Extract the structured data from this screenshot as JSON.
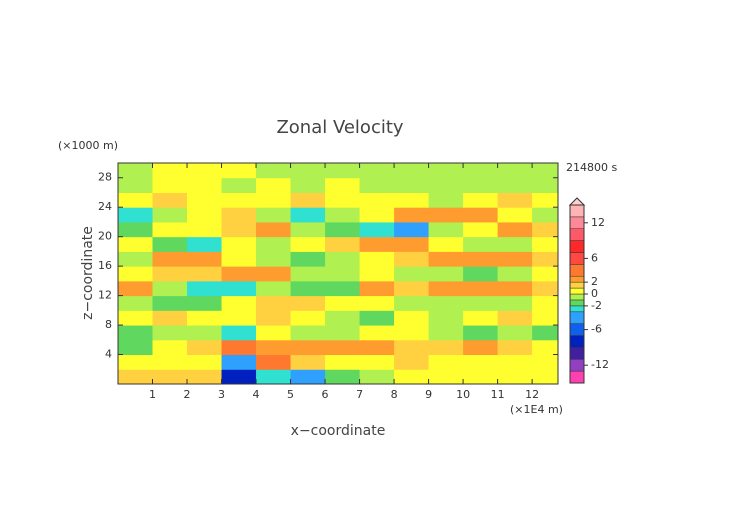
{
  "chart_data": {
    "type": "filled-contour",
    "title": "Zonal Velocity",
    "y_unit_label": "(×1000 m)",
    "time_label": "214800 s",
    "ylabel": "z−coordinate",
    "xlabel": "x−coordinate",
    "x_unit_label": "(×1E4 m)",
    "xlim": [
      0,
      12.75
    ],
    "ylim": [
      0,
      30
    ],
    "xticks": [
      1,
      2,
      3,
      4,
      5,
      6,
      7,
      8,
      9,
      10,
      11,
      12
    ],
    "yticks": [
      4,
      8,
      12,
      16,
      20,
      24,
      28
    ],
    "x": [
      0.5,
      1.5,
      2.5,
      3.5,
      4.5,
      5.5,
      6.5,
      7.5,
      8.5,
      9.5,
      10.5,
      11.5,
      12.5
    ],
    "z": [
      1,
      3,
      5,
      7,
      9,
      11,
      13,
      15,
      17,
      19,
      21,
      23,
      25,
      27,
      29
    ],
    "values": [
      [
        1,
        1.5,
        1,
        -8,
        -3,
        -4,
        -2,
        -1,
        0.5,
        0.5,
        0.5,
        0.3,
        0.5
      ],
      [
        0.5,
        0.5,
        0,
        -4,
        3,
        1.5,
        0.5,
        0.5,
        1,
        0.5,
        0.5,
        0.5,
        0.5
      ],
      [
        -1.5,
        0.5,
        1.5,
        4,
        2.5,
        2.5,
        2.5,
        2,
        1.5,
        1.5,
        2,
        1,
        0.5
      ],
      [
        -2,
        -1,
        -0.5,
        -3,
        0.5,
        -1,
        -1,
        0,
        0.5,
        -0.5,
        -1.5,
        -0.5,
        -2
      ],
      [
        0.5,
        1,
        0.5,
        0.5,
        1,
        0.5,
        -1,
        -1.5,
        0.5,
        -1,
        0.5,
        1,
        0.5
      ],
      [
        -1,
        -2,
        -1.5,
        0.5,
        1,
        1,
        0.5,
        0.5,
        -1,
        -0.5,
        -1,
        -0.5,
        0.5
      ],
      [
        2,
        -1,
        -2.5,
        -2.5,
        -1,
        -2,
        -1.5,
        2,
        1.5,
        2.5,
        2,
        2,
        1.5
      ],
      [
        0.5,
        1,
        1.5,
        2,
        2.5,
        -1,
        -0.5,
        0.5,
        -1,
        -1,
        -2,
        -1,
        0.5
      ],
      [
        -1,
        2,
        2.5,
        0.5,
        -1,
        -2,
        -1,
        0.5,
        1,
        2.5,
        2,
        2.5,
        1
      ],
      [
        0.5,
        -2,
        -2.5,
        0.5,
        -1,
        0.5,
        1,
        2,
        2.5,
        0.5,
        -1,
        -0.5,
        0.5
      ],
      [
        -2,
        0.5,
        0.5,
        1,
        2.5,
        -0.5,
        -2,
        -3,
        -4,
        -1,
        0.5,
        2,
        1
      ],
      [
        -2.5,
        -0.5,
        0.5,
        1,
        -1,
        -2.5,
        -0.5,
        0.5,
        2,
        2.5,
        2,
        0.5,
        -0.5
      ],
      [
        0.5,
        1,
        0.5,
        0.5,
        0.5,
        1,
        0.5,
        0.5,
        0.5,
        -0.5,
        0.5,
        1,
        0.5
      ],
      [
        -0.5,
        0.5,
        0.5,
        -0.5,
        0.5,
        -0.5,
        0.5,
        -0.5,
        -1,
        -0.5,
        -0.5,
        -1,
        -1
      ],
      [
        -0.5,
        0.5,
        0.5,
        0.5,
        -0.5,
        -0.5,
        -0.5,
        -0.5,
        -0.5,
        -0.5,
        -0.5,
        -0.5,
        -0.5
      ]
    ],
    "colorbar": {
      "levels": [
        -15,
        -13,
        -11,
        -9,
        -7,
        -5,
        -3,
        -2,
        -1,
        0,
        1,
        2,
        3,
        5,
        7,
        9,
        11,
        13,
        15
      ],
      "colors": [
        "#ff40b0",
        "#9040c0",
        "#4020a0",
        "#0020c0",
        "#1060f0",
        "#30a0ff",
        "#30e0d0",
        "#60d860",
        "#b0f050",
        "#ffff30",
        "#ffd040",
        "#ff9c30",
        "#ff7830",
        "#ff4840",
        "#ff2828",
        "#ff5868",
        "#ff8898",
        "#ffb4b4"
      ],
      "ticks": [
        12,
        6,
        2,
        0,
        -2,
        -6,
        -12
      ]
    }
  }
}
